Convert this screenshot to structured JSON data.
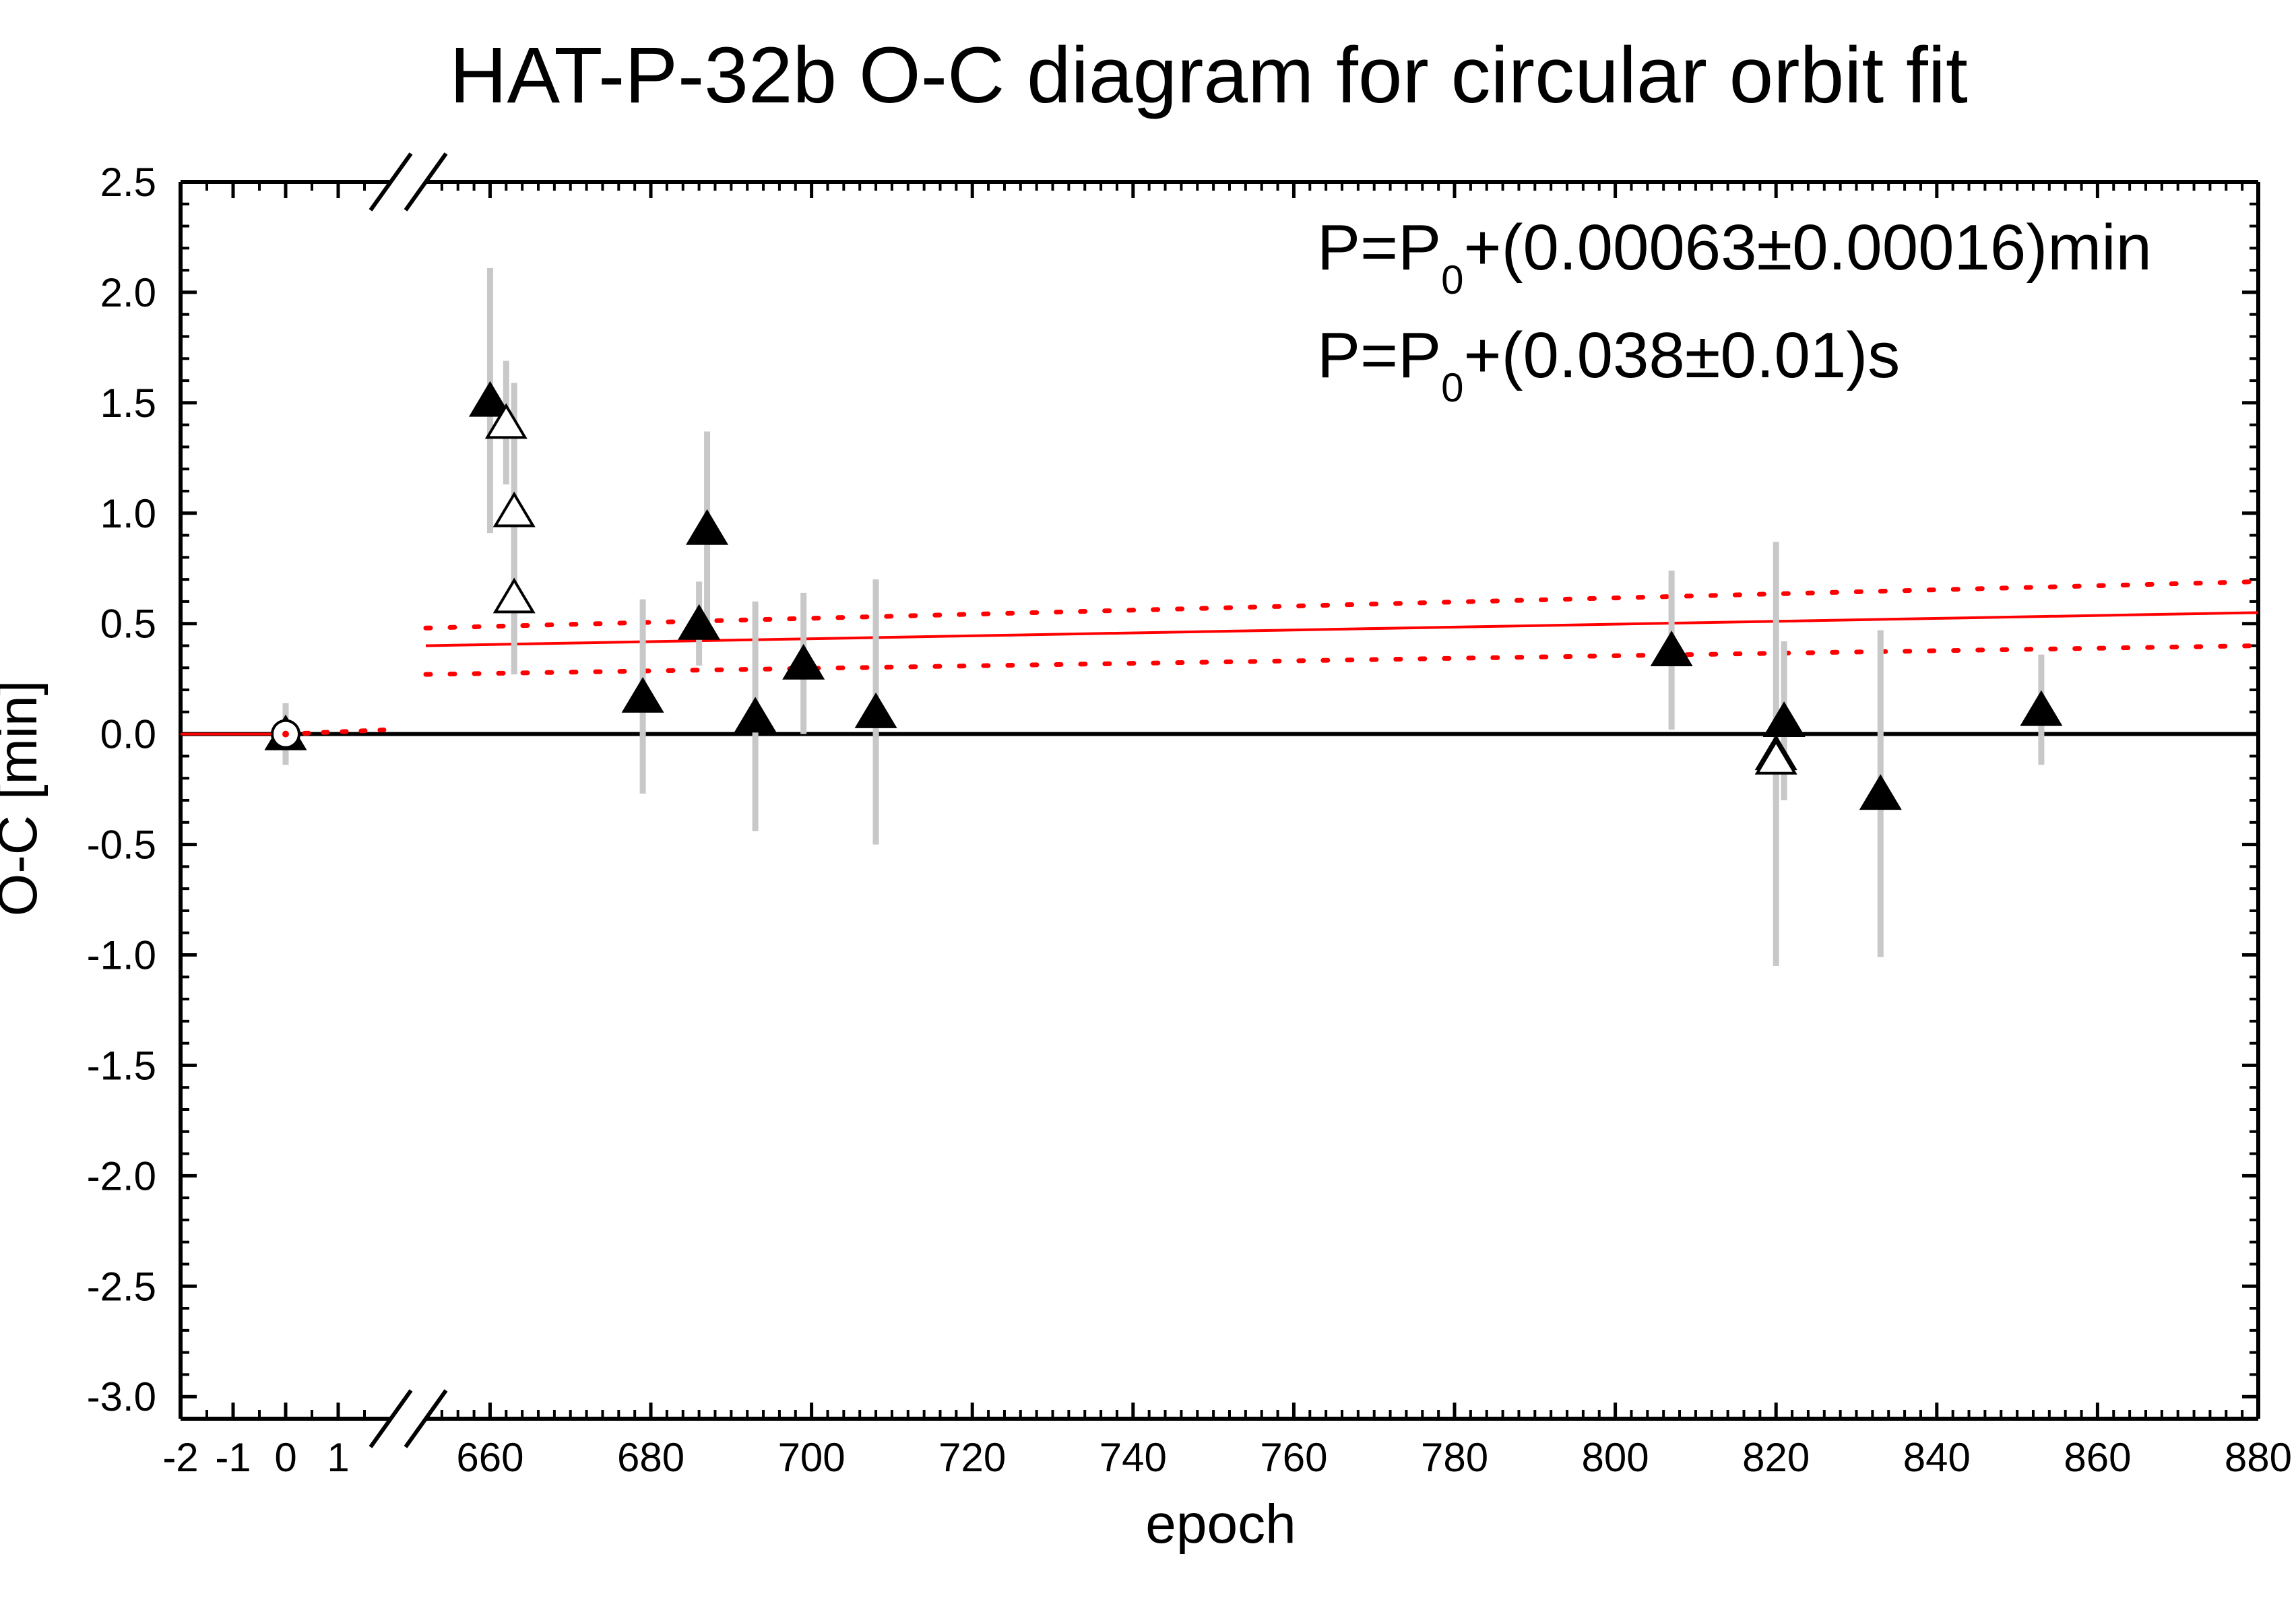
{
  "chart_data": {
    "type": "scatter",
    "title": "HAT-P-32b O-C diagram for circular orbit fit",
    "xlabel": "epoch",
    "ylabel": "O-C [min]",
    "xlim": [
      -2,
      880
    ],
    "ylim": [
      -3.1,
      2.5
    ],
    "axis_break": {
      "left_segment_x": [
        -2,
        2
      ],
      "right_segment_x": [
        652,
        880
      ]
    },
    "x_tick_labels_left": [
      "-2",
      "-1",
      "0",
      "1"
    ],
    "x_ticks_left": [
      -2,
      -1,
      0,
      1
    ],
    "x_tick_labels_right": [
      "660",
      "680",
      "700",
      "720",
      "740",
      "760",
      "780",
      "800",
      "820",
      "840",
      "860",
      "880"
    ],
    "x_ticks_right": [
      660,
      680,
      700,
      720,
      740,
      760,
      780,
      800,
      820,
      840,
      860,
      880
    ],
    "y_tick_labels": [
      "2.5",
      "2.0",
      "1.5",
      "1.0",
      "0.5",
      "0.0",
      "-0.5",
      "-1.0",
      "-1.5",
      "-2.0",
      "-2.5",
      "-3.0"
    ],
    "y_ticks": [
      2.5,
      2.0,
      1.5,
      1.0,
      0.5,
      0.0,
      -0.5,
      -1.0,
      -1.5,
      -2.0,
      -2.5,
      -3.0
    ],
    "grid": false,
    "annotations": [
      {
        "prefix": "P=P",
        "sub": "0",
        "rest": "+(0.00063±0.00016)min"
      },
      {
        "prefix": "P=P",
        "sub": "0",
        "rest": "+(0.038±0.01)s"
      }
    ],
    "series": [
      {
        "marker": "filled-triangle",
        "points": [
          {
            "x": 660,
            "y": 1.51,
            "err": 0.6
          },
          {
            "x": 686,
            "y": 0.5,
            "err": 0.19
          },
          {
            "x": 687,
            "y": 0.93,
            "err": 0.44
          },
          {
            "x": 679,
            "y": 0.17,
            "err": 0.44
          },
          {
            "x": 693,
            "y": 0.08,
            "err": 0.52
          },
          {
            "x": 699,
            "y": 0.32,
            "err": 0.32
          },
          {
            "x": 708,
            "y": 0.1,
            "err": 0.6
          },
          {
            "x": 807,
            "y": 0.38,
            "err": 0.36
          },
          {
            "x": 820,
            "y": -0.09,
            "err": 0.96
          },
          {
            "x": 821,
            "y": 0.06,
            "err": 0.36
          },
          {
            "x": 833,
            "y": -0.27,
            "err": 0.74
          },
          {
            "x": 853,
            "y": 0.11,
            "err": 0.25
          }
        ]
      },
      {
        "marker": "open-triangle",
        "points": [
          {
            "x": 662,
            "y": 1.41,
            "err": 0.28
          },
          {
            "x": 663,
            "y": 1.01,
            "err": 0.58
          },
          {
            "x": 663,
            "y": 0.62,
            "err": 0.35
          },
          {
            "x": 820,
            "y": -0.11,
            "err": 0.2
          }
        ]
      },
      {
        "marker": "open-circle",
        "points": [
          {
            "x": 0,
            "y": 0.0,
            "err": 0.14
          }
        ]
      }
    ],
    "fit": {
      "line": {
        "x": [
          652,
          880
        ],
        "y": [
          0.4,
          0.55
        ]
      },
      "band_upper": {
        "x": [
          652,
          880
        ],
        "y": [
          0.48,
          0.69
        ]
      },
      "band_lower": {
        "x": [
          652,
          880
        ],
        "y": [
          0.27,
          0.4
        ]
      },
      "left_segment": {
        "x": [
          -2,
          2
        ],
        "y": [
          -0.01,
          0.02
        ]
      }
    },
    "zero_line": 0.0,
    "colors": {
      "fit": "#ff0000",
      "errorbar": "#c8c8c8",
      "marker": "#000000",
      "axis": "#000000"
    }
  }
}
